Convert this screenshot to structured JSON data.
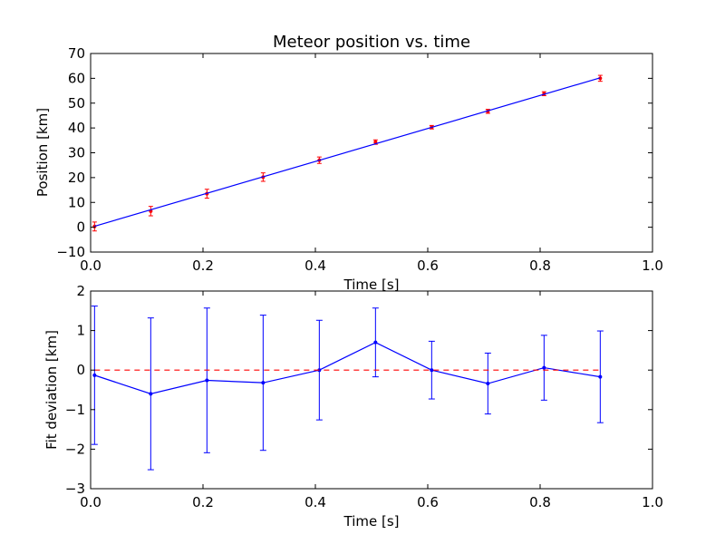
{
  "chart_data": [
    {
      "type": "line",
      "title": "Meteor position vs. time",
      "xlabel": "Time [s]",
      "ylabel": "Position [km]",
      "xlim": [
        0.0,
        1.0
      ],
      "ylim": [
        -10,
        70
      ],
      "xticks": [
        0.0,
        0.2,
        0.4,
        0.6,
        0.8,
        1.0
      ],
      "xtick_labels": [
        "0.0",
        "0.2",
        "0.4",
        "0.6",
        "0.8",
        "1.0"
      ],
      "yticks": [
        -10,
        0,
        10,
        20,
        30,
        40,
        50,
        60,
        70
      ],
      "ytick_labels": [
        "−10",
        "0",
        "10",
        "20",
        "30",
        "40",
        "50",
        "60",
        "70"
      ],
      "grid": false,
      "series": [
        {
          "style": "errorbar",
          "color": "#ff0000",
          "x": [
            0.007,
            0.107,
            0.207,
            0.307,
            0.407,
            0.507,
            0.607,
            0.707,
            0.807,
            0.907
          ],
          "y": [
            0.3,
            6.5,
            13.5,
            20.2,
            27.0,
            34.3,
            40.3,
            46.7,
            53.8,
            60.0
          ],
          "yerr": [
            1.8,
            1.9,
            1.8,
            1.7,
            1.3,
            0.9,
            0.7,
            0.8,
            0.8,
            1.2
          ]
        },
        {
          "style": "line",
          "color": "#0000ff",
          "x": [
            0.007,
            0.907
          ],
          "y": [
            0.4,
            60.2
          ]
        }
      ]
    },
    {
      "type": "line",
      "title": "",
      "xlabel": "Time [s]",
      "ylabel": "Fit deviation [km]",
      "xlim": [
        0.0,
        1.0
      ],
      "ylim": [
        -3,
        2
      ],
      "xticks": [
        0.0,
        0.2,
        0.4,
        0.6,
        0.8,
        1.0
      ],
      "xtick_labels": [
        "0.0",
        "0.2",
        "0.4",
        "0.6",
        "0.8",
        "1.0"
      ],
      "yticks": [
        -3,
        -2,
        -1,
        0,
        1,
        2
      ],
      "ytick_labels": [
        "−3",
        "−2",
        "−1",
        "0",
        "1",
        "2"
      ],
      "grid": false,
      "series": [
        {
          "style": "errorbar-line",
          "color": "#0000ff",
          "x": [
            0.007,
            0.107,
            0.207,
            0.307,
            0.407,
            0.507,
            0.607,
            0.707,
            0.807,
            0.907
          ],
          "y": [
            -0.13,
            -0.6,
            -0.26,
            -0.32,
            0.0,
            0.7,
            0.0,
            -0.34,
            0.06,
            -0.17
          ],
          "yerr": [
            1.75,
            1.92,
            1.83,
            1.71,
            1.26,
            0.87,
            0.73,
            0.77,
            0.82,
            1.16
          ]
        },
        {
          "style": "dashed",
          "color": "#ff0000",
          "x": [
            0.007,
            0.907
          ],
          "y": [
            0.0,
            0.0
          ]
        }
      ]
    }
  ]
}
